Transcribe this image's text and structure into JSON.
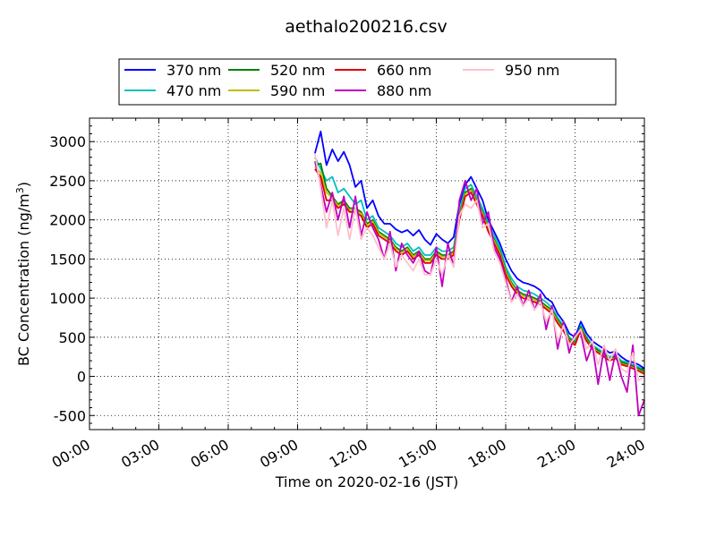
{
  "chart_data": {
    "type": "line",
    "title": "aethalo200216.csv",
    "xlabel": "Time on 2020-02-16 (JST)",
    "ylabel_main": "BC Concentration (ng/m",
    "ylabel_sup": "3",
    "ylabel_end": ")",
    "xlim": [
      "2020-02-16 00:00",
      "2020-02-17 00:00"
    ],
    "ylim": [
      -680,
      3300
    ],
    "xticks": [
      "00:00",
      "03:00",
      "06:00",
      "09:00",
      "12:00",
      "15:00",
      "18:00",
      "21:00",
      "24:00"
    ],
    "yticks": [
      -500,
      0,
      500,
      1000,
      1500,
      2000,
      2500,
      3000
    ],
    "grid": true,
    "legend_position": "top",
    "legend_columns": 4,
    "series": [
      {
        "name": "370 nm",
        "color": "#0000ff",
        "x": [
          "09:45",
          "10:00",
          "10:15",
          "10:30",
          "10:45",
          "11:00",
          "11:15",
          "11:30",
          "11:45",
          "12:00",
          "12:15",
          "12:30",
          "12:45",
          "13:00",
          "13:15",
          "13:30",
          "13:45",
          "14:00",
          "14:15",
          "14:30",
          "14:45",
          "15:00",
          "15:15",
          "15:30",
          "15:45",
          "16:00",
          "16:15",
          "16:30",
          "16:45",
          "17:00",
          "17:15",
          "17:30",
          "17:45",
          "18:00",
          "18:15",
          "18:30",
          "18:45",
          "19:00",
          "19:15",
          "19:30",
          "19:45",
          "20:00",
          "20:15",
          "20:30",
          "20:45",
          "21:00",
          "21:15",
          "21:30",
          "21:45",
          "22:00",
          "22:15",
          "22:30",
          "22:45",
          "23:00",
          "23:15",
          "23:30",
          "23:45",
          "24:00"
        ],
        "y": [
          2850,
          3130,
          2700,
          2900,
          2750,
          2870,
          2700,
          2420,
          2500,
          2150,
          2250,
          2050,
          1950,
          1950,
          1880,
          1840,
          1870,
          1800,
          1870,
          1750,
          1680,
          1820,
          1750,
          1700,
          1780,
          2200,
          2450,
          2550,
          2400,
          2250,
          2000,
          1850,
          1700,
          1500,
          1350,
          1250,
          1200,
          1180,
          1150,
          1100,
          1000,
          950,
          800,
          700,
          550,
          500,
          700,
          550,
          450,
          400,
          350,
          300,
          320,
          250,
          200,
          180,
          150,
          100
        ]
      },
      {
        "name": "470 nm",
        "color": "#00bfbf",
        "x": [
          "09:45",
          "10:00",
          "10:15",
          "10:30",
          "10:45",
          "11:00",
          "11:15",
          "11:30",
          "11:45",
          "12:00",
          "12:15",
          "12:30",
          "12:45",
          "13:00",
          "13:15",
          "13:30",
          "13:45",
          "14:00",
          "14:15",
          "14:30",
          "14:45",
          "15:00",
          "15:15",
          "15:30",
          "15:45",
          "16:00",
          "16:15",
          "16:30",
          "16:45",
          "17:00",
          "17:15",
          "17:30",
          "17:45",
          "18:00",
          "18:15",
          "18:30",
          "18:45",
          "19:00",
          "19:15",
          "19:30",
          "19:45",
          "20:00",
          "20:15",
          "20:30",
          "20:45",
          "21:00",
          "21:15",
          "21:30",
          "21:45",
          "22:00",
          "22:15",
          "22:30",
          "22:45",
          "23:00",
          "23:15",
          "23:30",
          "23:45",
          "24:00"
        ],
        "y": [
          2800,
          2650,
          2500,
          2550,
          2350,
          2400,
          2300,
          2200,
          2250,
          2000,
          2050,
          1900,
          1850,
          1800,
          1700,
          1650,
          1700,
          1600,
          1650,
          1550,
          1550,
          1650,
          1600,
          1600,
          1650,
          2100,
          2400,
          2450,
          2300,
          2150,
          1950,
          1800,
          1650,
          1400,
          1250,
          1150,
          1100,
          1080,
          1050,
          1000,
          950,
          880,
          750,
          650,
          500,
          450,
          650,
          500,
          400,
          350,
          300,
          250,
          280,
          200,
          180,
          150,
          120,
          80
        ]
      },
      {
        "name": "520 nm",
        "color": "#008000",
        "x": [
          "09:45",
          "10:00",
          "10:15",
          "10:30",
          "10:45",
          "11:00",
          "11:15",
          "11:30",
          "11:45",
          "12:00",
          "12:15",
          "12:30",
          "12:45",
          "13:00",
          "13:15",
          "13:30",
          "13:45",
          "14:00",
          "14:15",
          "14:30",
          "14:45",
          "15:00",
          "15:15",
          "15:30",
          "15:45",
          "16:00",
          "16:15",
          "16:30",
          "16:45",
          "17:00",
          "17:15",
          "17:30",
          "17:45",
          "18:00",
          "18:15",
          "18:30",
          "18:45",
          "19:00",
          "19:15",
          "19:30",
          "19:45",
          "20:00",
          "20:15",
          "20:30",
          "20:45",
          "21:00",
          "21:15",
          "21:30",
          "21:45",
          "22:00",
          "22:15",
          "22:30",
          "22:45",
          "23:00",
          "23:15",
          "23:30",
          "23:45",
          "24:00"
        ],
        "y": [
          2700,
          2720,
          2400,
          2300,
          2200,
          2250,
          2150,
          2150,
          2100,
          1950,
          2000,
          1850,
          1800,
          1750,
          1650,
          1600,
          1650,
          1550,
          1600,
          1500,
          1500,
          1600,
          1550,
          1550,
          1600,
          2050,
          2350,
          2400,
          2250,
          2100,
          1900,
          1750,
          1600,
          1350,
          1200,
          1100,
          1050,
          1030,
          1000,
          960,
          900,
          850,
          720,
          620,
          480,
          430,
          630,
          480,
          380,
          330,
          280,
          230,
          260,
          180,
          160,
          130,
          100,
          60
        ]
      },
      {
        "name": "590 nm",
        "color": "#bfbf00",
        "x": [
          "09:45",
          "10:00",
          "10:15",
          "10:30",
          "10:45",
          "11:00",
          "11:15",
          "11:30",
          "11:45",
          "12:00",
          "12:15",
          "12:30",
          "12:45",
          "13:00",
          "13:15",
          "13:30",
          "13:45",
          "14:00",
          "14:15",
          "14:30",
          "14:45",
          "15:00",
          "15:15",
          "15:30",
          "15:45",
          "16:00",
          "16:15",
          "16:30",
          "16:45",
          "17:00",
          "17:15",
          "17:30",
          "17:45",
          "18:00",
          "18:15",
          "18:30",
          "18:45",
          "19:00",
          "19:15",
          "19:30",
          "19:45",
          "20:00",
          "20:15",
          "20:30",
          "20:45",
          "21:00",
          "21:15",
          "21:30",
          "21:45",
          "22:00",
          "22:15",
          "22:30",
          "22:45",
          "23:00",
          "23:15",
          "23:30",
          "23:45",
          "24:00"
        ],
        "y": [
          2680,
          2600,
          2350,
          2280,
          2180,
          2220,
          2120,
          2120,
          2080,
          1930,
          1980,
          1830,
          1780,
          1730,
          1630,
          1580,
          1630,
          1530,
          1580,
          1480,
          1480,
          1580,
          1530,
          1530,
          1580,
          2030,
          2330,
          2380,
          2230,
          2080,
          1880,
          1730,
          1580,
          1330,
          1180,
          1080,
          1030,
          1010,
          980,
          940,
          880,
          830,
          700,
          600,
          460,
          410,
          610,
          460,
          360,
          310,
          260,
          210,
          240,
          160,
          140,
          110,
          80,
          40
        ]
      },
      {
        "name": "660 nm",
        "color": "#e00000",
        "x": [
          "09:45",
          "10:00",
          "10:15",
          "10:30",
          "10:45",
          "11:00",
          "11:15",
          "11:30",
          "11:45",
          "12:00",
          "12:15",
          "12:30",
          "12:45",
          "13:00",
          "13:15",
          "13:30",
          "13:45",
          "14:00",
          "14:15",
          "14:30",
          "14:45",
          "15:00",
          "15:15",
          "15:30",
          "15:45",
          "16:00",
          "16:15",
          "16:30",
          "16:45",
          "17:00",
          "17:15",
          "17:30",
          "17:45",
          "18:00",
          "18:15",
          "18:30",
          "18:45",
          "19:00",
          "19:15",
          "19:30",
          "19:45",
          "20:00",
          "20:15",
          "20:30",
          "20:45",
          "21:00",
          "21:15",
          "21:30",
          "21:45",
          "22:00",
          "22:15",
          "22:30",
          "22:45",
          "23:00",
          "23:15",
          "23:30",
          "23:45",
          "24:00"
        ],
        "y": [
          2650,
          2550,
          2250,
          2250,
          2150,
          2200,
          2100,
          2100,
          2050,
          1900,
          1950,
          1800,
          1750,
          1700,
          1600,
          1550,
          1600,
          1500,
          1550,
          1450,
          1450,
          1550,
          1500,
          1500,
          1550,
          2000,
          2300,
          2350,
          2200,
          2050,
          1850,
          1700,
          1550,
          1300,
          1150,
          1050,
          1000,
          980,
          950,
          920,
          860,
          800,
          680,
          580,
          450,
          400,
          600,
          450,
          350,
          300,
          250,
          200,
          230,
          150,
          130,
          100,
          70,
          30
        ]
      },
      {
        "name": "880 nm",
        "color": "#bf00bf",
        "x": [
          "09:45",
          "10:00",
          "10:15",
          "10:30",
          "10:45",
          "11:00",
          "11:15",
          "11:30",
          "11:45",
          "12:00",
          "12:15",
          "12:30",
          "12:45",
          "13:00",
          "13:15",
          "13:30",
          "13:45",
          "14:00",
          "14:15",
          "14:30",
          "14:45",
          "15:00",
          "15:15",
          "15:30",
          "15:45",
          "16:00",
          "16:15",
          "16:30",
          "16:45",
          "17:00",
          "17:15",
          "17:30",
          "17:45",
          "18:00",
          "18:15",
          "18:30",
          "18:45",
          "19:00",
          "19:15",
          "19:30",
          "19:45",
          "20:00",
          "20:15",
          "20:30",
          "20:45",
          "21:00",
          "21:15",
          "21:30",
          "21:45",
          "22:00",
          "22:15",
          "22:30",
          "22:45",
          "23:00",
          "23:15",
          "23:30",
          "23:45",
          "24:00"
        ],
        "y": [
          2750,
          2450,
          2100,
          2350,
          2000,
          2300,
          1900,
          2300,
          1800,
          2100,
          1900,
          1750,
          1500,
          1850,
          1350,
          1700,
          1550,
          1450,
          1600,
          1350,
          1300,
          1650,
          1150,
          1700,
          1400,
          2250,
          2500,
          2250,
          2400,
          1950,
          2100,
          1650,
          1500,
          1250,
          950,
          1150,
          900,
          1100,
          850,
          1050,
          600,
          900,
          350,
          700,
          300,
          550,
          550,
          200,
          400,
          -100,
          350,
          -50,
          300,
          0,
          -200,
          400,
          -500,
          -300
        ]
      },
      {
        "name": "950 nm",
        "color": "#ffc0cb",
        "x": [
          "09:45",
          "10:00",
          "10:15",
          "10:30",
          "10:45",
          "11:00",
          "11:15",
          "11:30",
          "11:45",
          "12:00",
          "12:15",
          "12:30",
          "12:45",
          "13:00",
          "13:15",
          "13:30",
          "13:45",
          "14:00",
          "14:15",
          "14:30",
          "14:45",
          "15:00",
          "15:15",
          "15:30",
          "15:45",
          "16:00",
          "16:15",
          "16:30",
          "16:45",
          "17:00",
          "17:15",
          "17:30",
          "17:45",
          "18:00",
          "18:15",
          "18:30",
          "18:45",
          "19:00",
          "19:15",
          "19:30",
          "19:45",
          "20:00",
          "20:15",
          "20:30",
          "20:45",
          "21:00",
          "21:15",
          "21:30",
          "21:45",
          "22:00",
          "22:15",
          "22:30",
          "22:45",
          "23:00",
          "23:15",
          "23:30",
          "23:45",
          "24:00"
        ],
        "y": [
          2850,
          2400,
          1900,
          2250,
          1800,
          2150,
          1750,
          2150,
          1750,
          1900,
          1800,
          1650,
          1500,
          1700,
          1400,
          1550,
          1450,
          1350,
          1500,
          1300,
          1300,
          1500,
          1300,
          1550,
          1400,
          2050,
          2200,
          2150,
          2250,
          1900,
          1950,
          1600,
          1450,
          1200,
          950,
          1050,
          900,
          1000,
          850,
          950,
          700,
          850,
          450,
          650,
          400,
          500,
          600,
          350,
          450,
          150,
          400,
          200,
          350,
          100,
          50,
          300,
          -50,
          0
        ]
      }
    ]
  }
}
